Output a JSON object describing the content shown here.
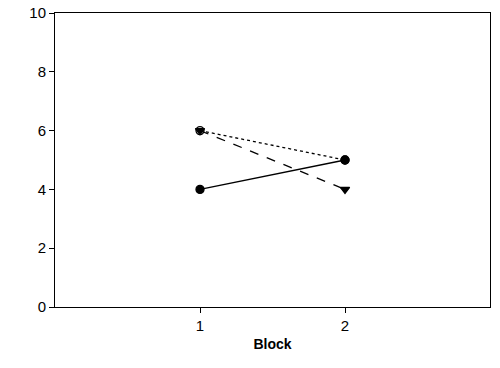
{
  "chart_data": {
    "type": "line",
    "x_label": "Block",
    "series": [
      {
        "x": [
          1,
          2
        ],
        "values": [
          4,
          5
        ],
        "color": "#000000",
        "line_style": "solid",
        "marker": "circle"
      },
      {
        "x": [
          1,
          2
        ],
        "values": [
          6,
          5
        ],
        "color": "#000000",
        "line_style": "dot",
        "marker": "circle-open"
      },
      {
        "x": [
          1,
          2
        ],
        "values": [
          6,
          4
        ],
        "color": "#000000",
        "line_style": "dash",
        "marker": "triangle-down"
      }
    ],
    "xlim": [
      0,
      3
    ],
    "xticks": [
      1,
      2
    ],
    "ylim": [
      0,
      10
    ],
    "yticks": [
      0,
      2,
      4,
      6,
      8,
      10
    ],
    "grid": false,
    "legend": "none"
  }
}
